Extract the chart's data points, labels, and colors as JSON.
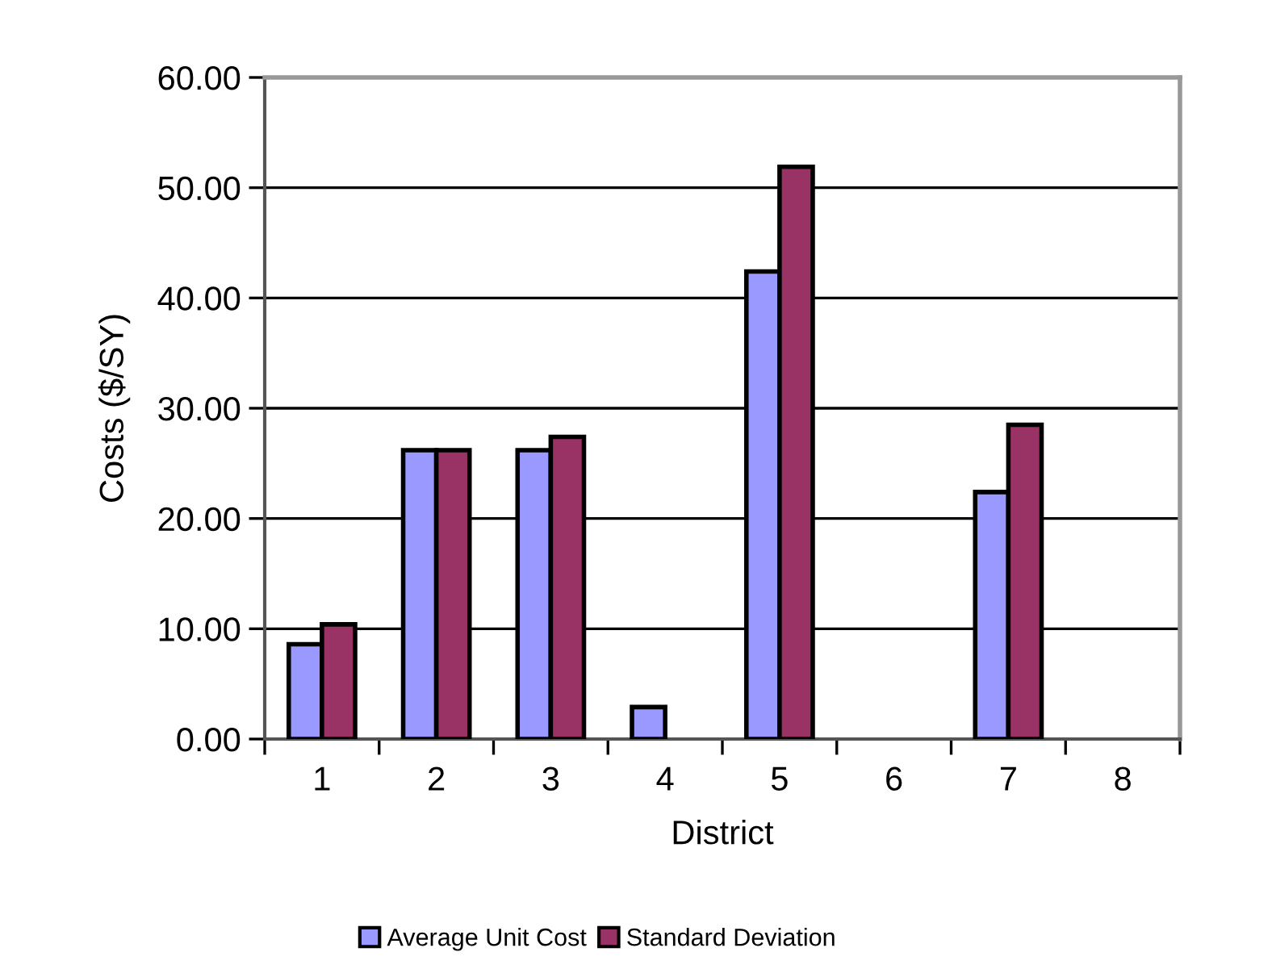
{
  "chart_data": {
    "type": "bar",
    "xlabel": "District",
    "ylabel": "Costs ($/SY)",
    "categories": [
      "1",
      "2",
      "3",
      "4",
      "5",
      "6",
      "7",
      "8"
    ],
    "series": [
      {
        "name": "Average Unit Cost",
        "color": "#9999ff",
        "values": [
          8.6,
          26.2,
          26.2,
          2.9,
          42.4,
          null,
          22.4,
          null
        ]
      },
      {
        "name": "Standard Deviation",
        "color": "#993366",
        "values": [
          10.4,
          26.2,
          27.4,
          null,
          51.9,
          null,
          28.5,
          null
        ]
      }
    ],
    "ylim": [
      0,
      60
    ],
    "yticks": [
      {
        "value": 0,
        "label": "0.00"
      },
      {
        "value": 10,
        "label": "10.00"
      },
      {
        "value": 20,
        "label": "20.00"
      },
      {
        "value": 30,
        "label": "30.00"
      },
      {
        "value": 40,
        "label": "40.00"
      },
      {
        "value": 50,
        "label": "50.00"
      },
      {
        "value": 60,
        "label": "60.00"
      }
    ],
    "grid": "y",
    "legend": "bottom"
  }
}
